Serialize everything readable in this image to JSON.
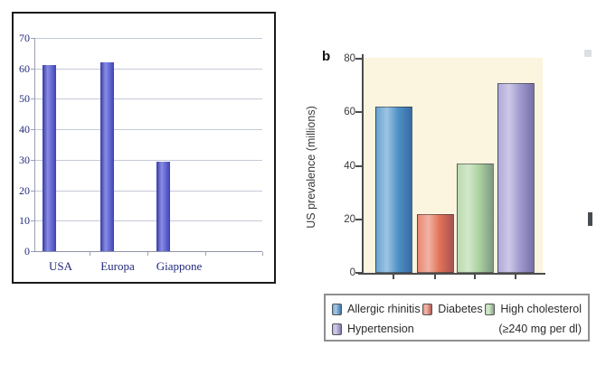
{
  "page": {
    "background": "#ffffff"
  },
  "chart_data": [
    {
      "type": "bar",
      "title": "",
      "categories": [
        "USA",
        "Europa",
        "Giappone"
      ],
      "values": [
        61,
        62,
        29.5
      ],
      "xlabel": "",
      "ylabel": "",
      "ylim": [
        0,
        70
      ],
      "yticks": [
        "70",
        "60",
        "50",
        "40",
        "30",
        "20",
        "10",
        "0"
      ],
      "grid": true,
      "legend_position": "none",
      "bar_color": "#4b51d8",
      "label_color": "#232a7c",
      "grid_color": "#c5c9d9",
      "plot_bg": "#ffffff"
    },
    {
      "type": "bar",
      "panel_label": "b",
      "title": "",
      "xlabel": "",
      "ylabel": "US prevalence (millions)",
      "categories": [
        "Allergic rhinitis",
        "Diabetes",
        "High cholesterol (≥240 mg per dl)",
        "Hypertension"
      ],
      "values": [
        62,
        22,
        41,
        71
      ],
      "ylim": [
        0,
        80
      ],
      "yticks": [
        "80",
        "60",
        "40",
        "20",
        "0"
      ],
      "grid": false,
      "legend_position": "bottom",
      "bar_colors": [
        "#4f94ca",
        "#e5745a",
        "#aed4a0",
        "#a39cd2"
      ],
      "plot_bg": "#fbf4de",
      "axis_color": "#4c4c4c",
      "legend": [
        {
          "label": "Allergic rhinitis",
          "color": "#4f94ca"
        },
        {
          "label": "Diabetes",
          "color": "#e5745a"
        },
        {
          "label": "High cholesterol",
          "sublabel": "(≥240 mg per dl)",
          "color": "#aed4a0"
        },
        {
          "label": "Hypertension",
          "color": "#a39cd2"
        }
      ]
    }
  ]
}
